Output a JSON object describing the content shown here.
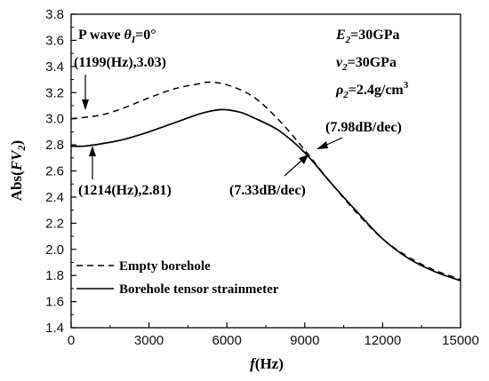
{
  "chart_data": {
    "type": "line",
    "x_label": {
      "text": "f",
      "unit": "(Hz)"
    },
    "y_label": {
      "prefix": "Abs(",
      "var": "FV",
      "sub": "2",
      "suffix": ")"
    },
    "xlim": [
      0,
      15000
    ],
    "ylim": [
      1.4,
      3.8
    ],
    "x_ticks": [
      0,
      3000,
      6000,
      9000,
      12000,
      15000
    ],
    "y_ticks": [
      "1.4",
      "1.6",
      "1.8",
      "2.0",
      "2.2",
      "2.4",
      "2.6",
      "2.8",
      "3.0",
      "3.2",
      "3.4",
      "3.6",
      "3.8"
    ],
    "grid": false,
    "legend_position": "bottom-left",
    "series": [
      {
        "name": "Empty borehole",
        "style": "dashed",
        "x": [
          0,
          500,
          1199,
          2000,
          3000,
          4000,
          5000,
          5300,
          6000,
          7000,
          8000,
          9000,
          10000,
          11000,
          12000,
          13000,
          14000,
          15000
        ],
        "y": [
          3.0,
          3.01,
          3.03,
          3.08,
          3.16,
          3.23,
          3.27,
          3.28,
          3.26,
          3.17,
          2.99,
          2.76,
          2.51,
          2.28,
          2.08,
          1.94,
          1.84,
          1.77
        ]
      },
      {
        "name": "Borehole tensor strainmeter",
        "style": "solid",
        "x": [
          0,
          500,
          1214,
          2000,
          3000,
          4000,
          5000,
          5800,
          6500,
          7000,
          8000,
          9000,
          10000,
          11000,
          12000,
          13000,
          14000,
          15000
        ],
        "y": [
          2.79,
          2.79,
          2.81,
          2.84,
          2.9,
          2.97,
          3.04,
          3.07,
          3.05,
          3.01,
          2.91,
          2.74,
          2.51,
          2.29,
          2.08,
          1.93,
          1.83,
          1.76
        ]
      }
    ],
    "annotations": {
      "wave": {
        "text": "P wave ",
        "theta": "θ",
        "sub": "I",
        "value": "=0°"
      },
      "point1": "(1199(Hz),3.03)",
      "point2": "(1214(Hz),2.81)",
      "slope1": "(7.98dB/dec)",
      "slope2": "(7.33dB/dec)",
      "params": {
        "e": {
          "var": "E",
          "sub": "2",
          "value": "=30GPa"
        },
        "nu": {
          "var": "ν",
          "sub": "2",
          "value": "=30GPa"
        },
        "rho": {
          "var": "ρ",
          "sub": "2",
          "value": "=2.4g/cm",
          "sup": "3"
        }
      }
    }
  }
}
